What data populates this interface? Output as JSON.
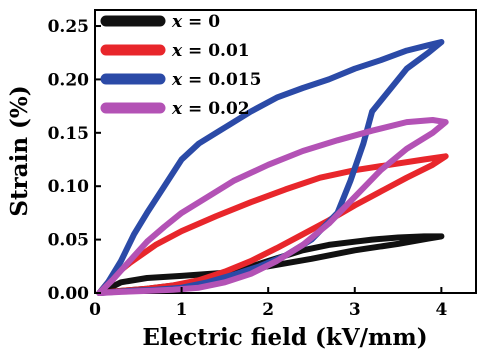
{
  "chart_data": {
    "type": "line",
    "title": "",
    "xlabel": "Electric field (kV/mm)",
    "ylabel": "Strain (%)",
    "xlim": [
      0,
      4.4
    ],
    "ylim": [
      0,
      0.265
    ],
    "xticks": [
      "0",
      "1",
      "2",
      "3",
      "4"
    ],
    "xtick_values": [
      0,
      1,
      2,
      3,
      4
    ],
    "yticks": [
      "0.00",
      "0.05",
      "0.10",
      "0.15",
      "0.20",
      "0.25"
    ],
    "ytick_values": [
      0,
      0.05,
      0.1,
      0.15,
      0.2,
      0.25
    ],
    "grid": false,
    "legend_position": "top-left",
    "series": [
      {
        "name": "x = 0",
        "legend_var": "x",
        "legend_rest": " = 0",
        "color": "#111111",
        "x": [
          0.05,
          0.3,
          0.6,
          1.0,
          1.5,
          2.0,
          2.5,
          3.0,
          3.5,
          3.85,
          4.0,
          3.8,
          3.5,
          3.2,
          3.0,
          2.7,
          2.4,
          2.2,
          2.0,
          1.7,
          1.3,
          1.0,
          0.6,
          0.3,
          0.05
        ],
        "y": [
          0.0,
          0.01,
          0.014,
          0.016,
          0.019,
          0.025,
          0.032,
          0.04,
          0.046,
          0.051,
          0.053,
          0.053,
          0.052,
          0.05,
          0.048,
          0.045,
          0.04,
          0.035,
          0.03,
          0.022,
          0.014,
          0.008,
          0.004,
          0.002,
          0.0
        ]
      },
      {
        "name": "x = 0.01",
        "legend_var": "x",
        "legend_rest": " = 0.01",
        "color": "#e8262b",
        "x": [
          0.05,
          0.2,
          0.4,
          0.7,
          1.0,
          1.4,
          1.8,
          2.2,
          2.6,
          3.0,
          3.4,
          3.8,
          4.05,
          3.9,
          3.6,
          3.3,
          3.0,
          2.7,
          2.4,
          2.1,
          1.8,
          1.5,
          1.2,
          0.9,
          0.6,
          0.3,
          0.05
        ],
        "y": [
          0.0,
          0.015,
          0.028,
          0.045,
          0.058,
          0.072,
          0.085,
          0.097,
          0.108,
          0.115,
          0.12,
          0.125,
          0.128,
          0.12,
          0.108,
          0.095,
          0.082,
          0.068,
          0.055,
          0.042,
          0.03,
          0.02,
          0.012,
          0.007,
          0.004,
          0.002,
          0.0
        ]
      },
      {
        "name": "x = 0.015",
        "legend_var": "x",
        "legend_rest": " = 0.015",
        "color": "#2b4aa7",
        "x": [
          0.05,
          0.15,
          0.3,
          0.45,
          0.6,
          0.8,
          1.0,
          1.2,
          1.5,
          1.8,
          2.1,
          2.4,
          2.7,
          3.0,
          3.3,
          3.6,
          3.85,
          4.0,
          3.85,
          3.6,
          3.4,
          3.2,
          3.1,
          2.95,
          2.8,
          2.5,
          2.2,
          1.9,
          1.6,
          1.3,
          1.0,
          0.7,
          0.4,
          0.05
        ],
        "y": [
          0.0,
          0.01,
          0.03,
          0.055,
          0.075,
          0.1,
          0.125,
          0.14,
          0.155,
          0.17,
          0.183,
          0.192,
          0.2,
          0.21,
          0.218,
          0.227,
          0.232,
          0.235,
          0.225,
          0.21,
          0.19,
          0.17,
          0.14,
          0.105,
          0.075,
          0.05,
          0.035,
          0.025,
          0.017,
          0.01,
          0.005,
          0.003,
          0.002,
          0.0
        ]
      },
      {
        "name": "x = 0.02",
        "legend_var": "x",
        "legend_rest": " = 0.02",
        "color": "#b352b5",
        "x": [
          0.05,
          0.2,
          0.4,
          0.6,
          0.8,
          1.0,
          1.3,
          1.6,
          2.0,
          2.4,
          2.8,
          3.2,
          3.6,
          3.9,
          4.05,
          3.9,
          3.6,
          3.3,
          3.0,
          2.7,
          2.4,
          2.1,
          1.8,
          1.5,
          1.2,
          0.9,
          0.6,
          0.3,
          0.05
        ],
        "y": [
          0.0,
          0.012,
          0.03,
          0.048,
          0.062,
          0.075,
          0.09,
          0.105,
          0.12,
          0.133,
          0.143,
          0.152,
          0.16,
          0.162,
          0.16,
          0.15,
          0.135,
          0.115,
          0.09,
          0.065,
          0.045,
          0.03,
          0.018,
          0.01,
          0.005,
          0.003,
          0.002,
          0.001,
          0.0
        ]
      }
    ]
  }
}
